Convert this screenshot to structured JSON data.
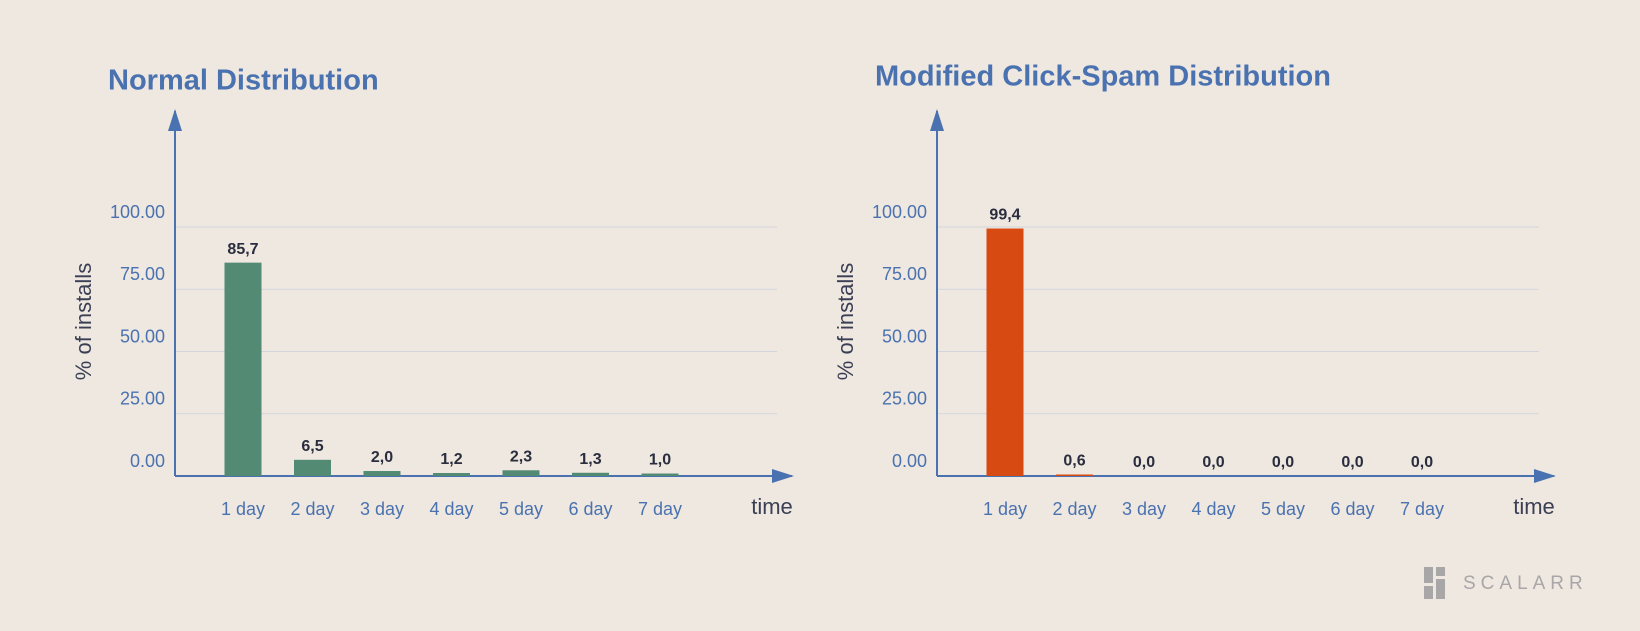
{
  "chart_data": [
    {
      "type": "bar",
      "title": "Normal Distribution",
      "y_label": "% of installs",
      "x_label": "time",
      "categories": [
        "1 day",
        "2 day",
        "3 day",
        "4 day",
        "5 day",
        "6 day",
        "7 day"
      ],
      "values": [
        85.7,
        6.5,
        2.0,
        1.2,
        2.3,
        1.3,
        1.0
      ],
      "value_labels": [
        "85,7",
        "6,5",
        "2,0",
        "1,2",
        "2,3",
        "1,3",
        "1,0"
      ],
      "color": "#528a73",
      "ylim": [
        0,
        145
      ],
      "yticks": [
        {
          "value": 0,
          "label": "0.00"
        },
        {
          "value": 25,
          "label": "25.00"
        },
        {
          "value": 50,
          "label": "50.00"
        },
        {
          "value": 75,
          "label": "75.00"
        },
        {
          "value": 100,
          "label": "100.00"
        }
      ],
      "grid": true
    },
    {
      "type": "bar",
      "title": "Modified Click-Spam Distribution",
      "y_label": "% of installs",
      "x_label": "time",
      "categories": [
        "1 day",
        "2 day",
        "3 day",
        "4 day",
        "5 day",
        "6 day",
        "7 day"
      ],
      "values": [
        99.4,
        0.6,
        0.0,
        0.0,
        0.0,
        0.0,
        0.0
      ],
      "value_labels": [
        "99,4",
        "0,6",
        "0,0",
        "0,0",
        "0,0",
        "0,0",
        "0,0"
      ],
      "color": "#d74a12",
      "ylim": [
        0,
        145
      ],
      "yticks": [
        {
          "value": 0,
          "label": "0.00"
        },
        {
          "value": 25,
          "label": "25.00"
        },
        {
          "value": 50,
          "label": "50.00"
        },
        {
          "value": 75,
          "label": "75.00"
        },
        {
          "value": 100,
          "label": "100.00"
        }
      ],
      "grid": true
    }
  ],
  "logo": "SCALARR"
}
